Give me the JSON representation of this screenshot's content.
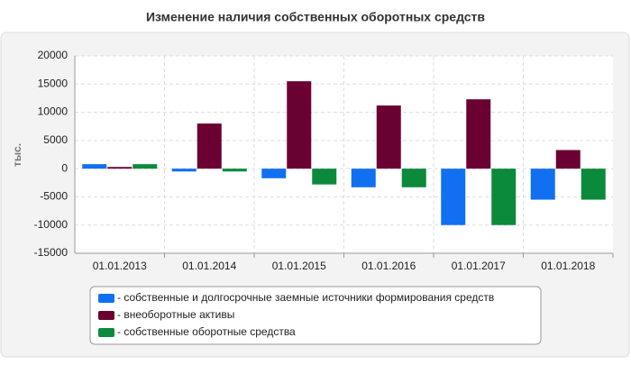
{
  "chart_data": {
    "type": "bar",
    "title": "Изменение наличия собственных оборотных средств",
    "y_label": "тыс.",
    "categories": [
      "01.01.2013",
      "01.01.2014",
      "01.01.2015",
      "01.01.2016",
      "01.01.2017",
      "01.01.2018"
    ],
    "series": [
      {
        "name": "- собственные и долгосрочные заемные источники формирования средств",
        "color": "#1170f2",
        "values": [
          800,
          -500,
          -1700,
          -3300,
          -10000,
          -5500
        ]
      },
      {
        "name": "- внеоборотные активы",
        "color": "#6b0133",
        "values": [
          300,
          8000,
          15500,
          11200,
          12300,
          3300
        ]
      },
      {
        "name": "- собственные оборотные средства",
        "color": "#0b8a3c",
        "values": [
          800,
          -500,
          -2800,
          -3300,
          -10000,
          -5500
        ]
      }
    ],
    "ylim": [
      -15000,
      20000
    ],
    "yticks": [
      -15000,
      -10000,
      -5000,
      0,
      5000,
      10000,
      15000,
      20000
    ],
    "grid": true
  }
}
